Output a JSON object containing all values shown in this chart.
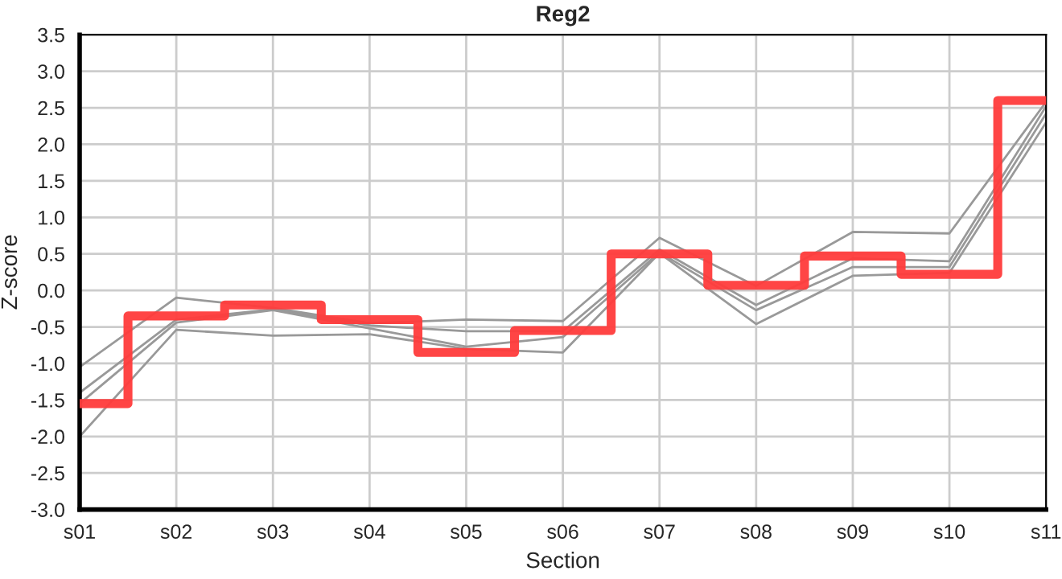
{
  "chart_data": {
    "type": "line",
    "title": "Reg2",
    "xlabel": "Section",
    "ylabel": "Z-score",
    "categories": [
      "s01",
      "s02",
      "s03",
      "s04",
      "s05",
      "s06",
      "s07",
      "s08",
      "s09",
      "s10",
      "s11"
    ],
    "series": [
      {
        "color": "#999999",
        "values": [
          -1.05,
          -0.1,
          -0.24,
          -0.45,
          -0.4,
          -0.42,
          0.72,
          0.06,
          0.8,
          0.78,
          2.58
        ]
      },
      {
        "color": "#999999",
        "values": [
          -1.4,
          -0.4,
          -0.26,
          -0.48,
          -0.56,
          -0.56,
          0.56,
          -0.2,
          0.44,
          0.4,
          2.52
        ]
      },
      {
        "color": "#999999",
        "values": [
          -1.55,
          -0.44,
          -0.27,
          -0.52,
          -0.77,
          -0.64,
          0.52,
          -0.27,
          0.32,
          0.32,
          2.42
        ]
      },
      {
        "color": "#999999",
        "values": [
          -2.0,
          -0.54,
          -0.62,
          -0.6,
          -0.8,
          -0.85,
          0.51,
          -0.46,
          0.2,
          0.24,
          2.3
        ]
      },
      {
        "type": "step",
        "color": "#ff3b3b",
        "values": [
          -1.55,
          -0.35,
          -0.2,
          -0.4,
          -0.85,
          -0.55,
          0.5,
          0.07,
          0.47,
          0.22,
          2.6
        ]
      }
    ],
    "ylim": [
      -3.0,
      3.5
    ],
    "yticks": [
      {
        "value": -3.0,
        "label": "-3.0"
      },
      {
        "value": -2.5,
        "label": "-2.5"
      },
      {
        "value": -2.0,
        "label": "-2.0"
      },
      {
        "value": -1.5,
        "label": "-1.5"
      },
      {
        "value": -1.0,
        "label": "-1.0"
      },
      {
        "value": -0.5,
        "label": "-0.5"
      },
      {
        "value": 0.0,
        "label": "0.0"
      },
      {
        "value": 0.5,
        "label": "0.5"
      },
      {
        "value": 1.0,
        "label": "1.0"
      },
      {
        "value": 1.5,
        "label": "1.5"
      },
      {
        "value": 2.0,
        "label": "2.0"
      },
      {
        "value": 2.5,
        "label": "2.5"
      },
      {
        "value": 3.0,
        "label": "3.0"
      },
      {
        "value": 3.5,
        "label": "3.5"
      }
    ],
    "grid": true,
    "legend": false
  }
}
